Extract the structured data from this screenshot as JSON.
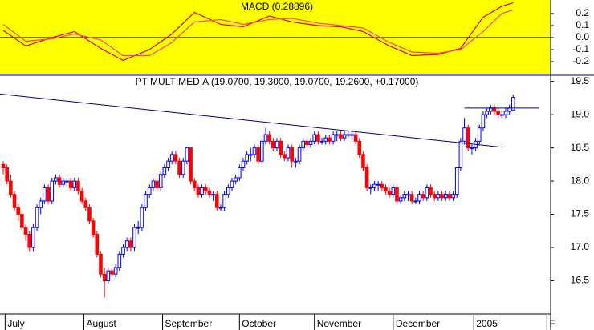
{
  "chart_data": [
    {
      "type": "line",
      "title": "MACD (0.28896)",
      "x": [
        0,
        6,
        13,
        19,
        26,
        32,
        39,
        45,
        51,
        58,
        64,
        71,
        77,
        84,
        90,
        96,
        103,
        109,
        116,
        122,
        128,
        133,
        136
      ],
      "xlim": [
        -0.86,
        146
      ],
      "series": [
        {
          "color": "#e00000",
          "values": [
            0.06,
            -0.07,
            0.0,
            0.05,
            -0.09,
            -0.19,
            -0.1,
            0.03,
            0.21,
            0.11,
            0.09,
            0.18,
            0.13,
            0.1,
            0.09,
            0.05,
            -0.07,
            -0.15,
            -0.14,
            -0.09,
            0.17,
            0.26,
            0.29
          ]
        },
        {
          "color": "#ff4080",
          "values": [
            0.11,
            -0.03,
            -0.01,
            0.03,
            -0.02,
            -0.15,
            -0.15,
            -0.04,
            0.13,
            0.15,
            0.11,
            0.15,
            0.16,
            0.12,
            0.1,
            0.08,
            -0.04,
            -0.12,
            -0.13,
            -0.1,
            0.05,
            0.2,
            0.23
          ]
        }
      ],
      "ylim": [
        -0.3,
        0.313
      ],
      "yticks": [
        0.2,
        0.1,
        {
          "value": 0,
          "label": "0.0"
        },
        -0.1,
        -0.2
      ],
      "zero_line": true,
      "background": "#ffff00"
    },
    {
      "type": "candlestick",
      "title": "PT MULTIMEDIA (19.0700, 19.3000, 19.0700, 19.2600, +0.17000)",
      "xlim": [
        -0.86,
        146
      ],
      "xticks": [
        {
          "value": 0.5,
          "label": "July"
        },
        {
          "value": 21.5,
          "label": "August"
        },
        {
          "value": 42.5,
          "label": "September"
        },
        {
          "value": 63,
          "label": "October"
        },
        {
          "value": 83,
          "label": "November"
        },
        {
          "value": 104,
          "label": "December"
        },
        {
          "value": 125.5,
          "label": "2005"
        },
        {
          "value": 145,
          "label": "F"
        }
      ],
      "ylim": [
        16.0,
        19.58
      ],
      "yticks": [
        19.5,
        {
          "value": 19,
          "label": "19.0"
        },
        18.5,
        {
          "value": 18,
          "label": "18.0"
        },
        17.5,
        {
          "value": 17,
          "label": "17.0"
        },
        16.5
      ],
      "up_color": "#0000ff",
      "down_color": "#ff0000",
      "candles": [
        [
          18.25,
          18.3,
          18.1,
          18.2
        ],
        [
          18.2,
          18.25,
          17.95,
          18.0
        ],
        [
          18.0,
          18.1,
          17.75,
          17.8
        ],
        [
          17.8,
          17.85,
          17.55,
          17.6
        ],
        [
          17.6,
          17.65,
          17.4,
          17.5
        ],
        [
          17.5,
          17.55,
          17.25,
          17.3
        ],
        [
          17.3,
          17.35,
          17.1,
          17.2
        ],
        [
          17.2,
          17.25,
          16.95,
          17.0
        ],
        [
          17.0,
          17.35,
          16.95,
          17.3
        ],
        [
          17.3,
          17.65,
          17.25,
          17.6
        ],
        [
          17.6,
          17.75,
          17.5,
          17.7
        ],
        [
          17.7,
          17.95,
          17.65,
          17.9
        ],
        [
          17.9,
          17.95,
          17.65,
          17.7
        ],
        [
          17.7,
          18.05,
          17.65,
          18.0
        ],
        [
          18.0,
          18.1,
          17.95,
          18.05
        ],
        [
          18.05,
          18.1,
          17.9,
          17.95
        ],
        [
          17.95,
          18.05,
          17.9,
          18.0
        ],
        [
          18.0,
          18.05,
          17.9,
          18.0
        ],
        [
          18.0,
          18.05,
          17.85,
          17.9
        ],
        [
          17.9,
          18.05,
          17.85,
          18.0
        ],
        [
          18.0,
          18.05,
          17.8,
          17.85
        ],
        [
          17.85,
          17.9,
          17.65,
          17.7
        ],
        [
          17.7,
          17.75,
          17.55,
          17.6
        ],
        [
          17.6,
          17.65,
          17.35,
          17.4
        ],
        [
          17.4,
          17.45,
          17.15,
          17.2
        ],
        [
          17.2,
          17.25,
          16.85,
          16.9
        ],
        [
          16.9,
          16.95,
          16.55,
          16.6
        ],
        [
          16.6,
          16.7,
          16.25,
          16.5
        ],
        [
          16.5,
          16.7,
          16.45,
          16.65
        ],
        [
          16.65,
          16.7,
          16.55,
          16.6
        ],
        [
          16.6,
          16.75,
          16.55,
          16.7
        ],
        [
          16.7,
          16.95,
          16.65,
          16.9
        ],
        [
          16.9,
          17.05,
          16.85,
          17.0
        ],
        [
          17.0,
          17.15,
          16.95,
          17.1
        ],
        [
          17.1,
          17.15,
          16.95,
          17.0
        ],
        [
          17.0,
          17.35,
          16.95,
          17.3
        ],
        [
          17.3,
          17.4,
          17.2,
          17.3
        ],
        [
          17.3,
          17.65,
          17.25,
          17.6
        ],
        [
          17.6,
          17.85,
          17.55,
          17.8
        ],
        [
          17.8,
          17.95,
          17.75,
          17.9
        ],
        [
          17.9,
          18.05,
          17.85,
          18.0
        ],
        [
          18.0,
          18.05,
          17.85,
          17.9
        ],
        [
          17.9,
          18.15,
          17.85,
          18.1
        ],
        [
          18.1,
          18.25,
          18.05,
          18.2
        ],
        [
          18.2,
          18.35,
          18.15,
          18.3
        ],
        [
          18.3,
          18.45,
          18.25,
          18.4
        ],
        [
          18.4,
          18.45,
          18.25,
          18.3
        ],
        [
          18.3,
          18.35,
          18.05,
          18.1
        ],
        [
          18.1,
          18.35,
          18.05,
          18.3
        ],
        [
          18.3,
          18.5,
          18.25,
          18.5
        ],
        [
          18.5,
          18.5,
          17.95,
          18.0
        ],
        [
          18.0,
          18.05,
          17.85,
          17.9
        ],
        [
          17.9,
          17.95,
          17.75,
          17.8
        ],
        [
          17.8,
          17.95,
          17.75,
          17.9
        ],
        [
          17.9,
          17.95,
          17.8,
          17.85
        ],
        [
          17.85,
          17.9,
          17.75,
          17.8
        ],
        [
          17.8,
          17.85,
          17.7,
          17.8
        ],
        [
          17.8,
          17.85,
          17.55,
          17.6
        ],
        [
          17.6,
          17.65,
          17.55,
          17.6
        ],
        [
          17.6,
          17.85,
          17.55,
          17.8
        ],
        [
          17.8,
          17.95,
          17.75,
          17.9
        ],
        [
          17.9,
          18.05,
          17.85,
          18.0
        ],
        [
          18.0,
          18.1,
          17.95,
          18.05
        ],
        [
          18.05,
          18.25,
          18.0,
          18.2
        ],
        [
          18.2,
          18.35,
          18.15,
          18.3
        ],
        [
          18.3,
          18.45,
          18.25,
          18.4
        ],
        [
          18.4,
          18.5,
          18.3,
          18.4
        ],
        [
          18.4,
          18.55,
          18.35,
          18.5
        ],
        [
          18.5,
          18.55,
          18.25,
          18.3
        ],
        [
          18.3,
          18.65,
          18.25,
          18.6
        ],
        [
          18.6,
          18.8,
          18.55,
          18.7
        ],
        [
          18.7,
          18.75,
          18.55,
          18.6
        ],
        [
          18.6,
          18.65,
          18.45,
          18.5
        ],
        [
          18.5,
          18.65,
          18.45,
          18.6
        ],
        [
          18.6,
          18.65,
          18.35,
          18.4
        ],
        [
          18.4,
          18.45,
          18.3,
          18.35
        ],
        [
          18.35,
          18.55,
          18.3,
          18.5
        ],
        [
          18.5,
          18.55,
          18.2,
          18.3
        ],
        [
          18.3,
          18.35,
          18.2,
          18.3
        ],
        [
          18.3,
          18.55,
          18.25,
          18.5
        ],
        [
          18.5,
          18.65,
          18.45,
          18.6
        ],
        [
          18.6,
          18.65,
          18.5,
          18.55
        ],
        [
          18.55,
          18.65,
          18.5,
          18.6
        ],
        [
          18.6,
          18.75,
          18.55,
          18.7
        ],
        [
          18.7,
          18.75,
          18.55,
          18.6
        ],
        [
          18.6,
          18.65,
          18.55,
          18.6
        ],
        [
          18.6,
          18.7,
          18.55,
          18.65
        ],
        [
          18.65,
          18.7,
          18.55,
          18.6
        ],
        [
          18.6,
          18.75,
          18.55,
          18.7
        ],
        [
          18.7,
          18.75,
          18.6,
          18.7
        ],
        [
          18.7,
          18.75,
          18.6,
          18.65
        ],
        [
          18.65,
          18.75,
          18.6,
          18.7
        ],
        [
          18.7,
          18.75,
          18.65,
          18.7
        ],
        [
          18.7,
          18.75,
          18.6,
          18.7
        ],
        [
          18.7,
          18.75,
          18.55,
          18.6
        ],
        [
          18.6,
          18.65,
          18.35,
          18.4
        ],
        [
          18.4,
          18.45,
          18.15,
          18.2
        ],
        [
          18.2,
          18.25,
          17.85,
          17.9
        ],
        [
          17.9,
          17.95,
          17.8,
          17.9
        ],
        [
          17.9,
          18.0,
          17.85,
          17.95
        ],
        [
          17.95,
          18.0,
          17.85,
          17.95
        ],
        [
          17.95,
          18.0,
          17.85,
          17.9
        ],
        [
          17.9,
          17.95,
          17.8,
          17.85
        ],
        [
          17.85,
          17.9,
          17.75,
          17.8
        ],
        [
          17.8,
          17.95,
          17.75,
          17.9
        ],
        [
          17.9,
          17.95,
          17.65,
          17.7
        ],
        [
          17.7,
          17.8,
          17.65,
          17.75
        ],
        [
          17.75,
          17.85,
          17.7,
          17.8
        ],
        [
          17.8,
          17.85,
          17.7,
          17.8
        ],
        [
          17.8,
          17.85,
          17.65,
          17.7
        ],
        [
          17.7,
          17.75,
          17.65,
          17.7
        ],
        [
          17.7,
          17.85,
          17.65,
          17.8
        ],
        [
          17.8,
          17.85,
          17.7,
          17.75
        ],
        [
          17.75,
          17.95,
          17.7,
          17.9
        ],
        [
          17.9,
          17.95,
          17.75,
          17.8
        ],
        [
          17.8,
          17.85,
          17.7,
          17.75
        ],
        [
          17.75,
          17.85,
          17.7,
          17.8
        ],
        [
          17.8,
          17.85,
          17.7,
          17.75
        ],
        [
          17.75,
          17.85,
          17.7,
          17.8
        ],
        [
          17.8,
          17.85,
          17.7,
          17.75
        ],
        [
          17.75,
          17.85,
          17.7,
          17.8
        ],
        [
          17.8,
          18.2,
          17.75,
          18.2
        ],
        [
          18.2,
          18.65,
          18.15,
          18.6
        ],
        [
          18.6,
          18.95,
          18.55,
          18.8
        ],
        [
          18.8,
          18.85,
          18.45,
          18.5
        ],
        [
          18.5,
          18.55,
          18.4,
          18.5
        ],
        [
          18.5,
          18.65,
          18.45,
          18.6
        ],
        [
          18.6,
          18.85,
          18.55,
          18.8
        ],
        [
          18.8,
          19.05,
          18.75,
          19.0
        ],
        [
          19.0,
          19.1,
          18.95,
          19.05
        ],
        [
          19.05,
          19.15,
          19.0,
          19.1
        ],
        [
          19.1,
          19.15,
          19.0,
          19.05
        ],
        [
          19.05,
          19.1,
          18.95,
          19.0
        ],
        [
          19.0,
          19.05,
          18.95,
          19.0
        ],
        [
          19.0,
          19.1,
          18.95,
          19.05
        ],
        [
          19.05,
          19.15,
          19.0,
          19.1
        ],
        [
          19.07,
          19.3,
          19.07,
          19.26
        ]
      ],
      "lines": [
        {
          "color": "#000080",
          "x": [
            -0.86,
            133
          ],
          "y": [
            19.31,
            18.51
          ]
        },
        {
          "color": "#000080",
          "x": [
            123,
            143
          ],
          "y": [
            19.1,
            19.1
          ]
        }
      ]
    }
  ]
}
